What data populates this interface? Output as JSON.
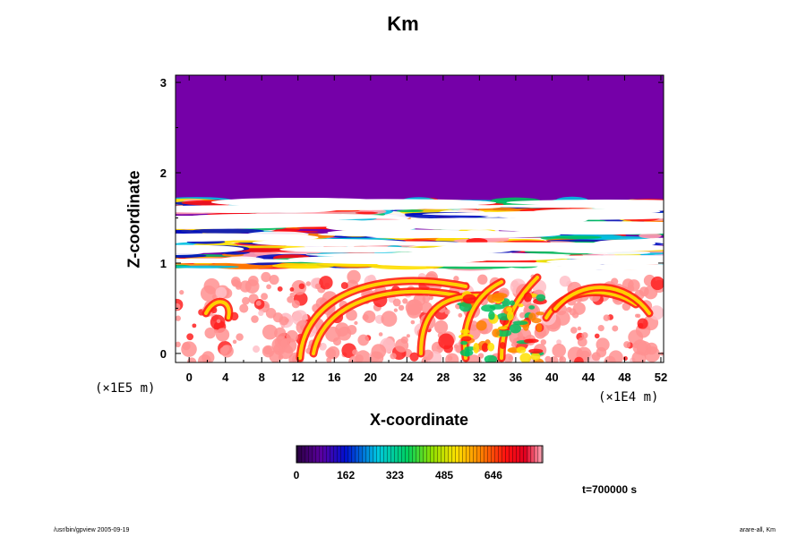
{
  "chart_data": {
    "type": "heatmap",
    "title": "Km",
    "xlabel": "X-coordinate",
    "ylabel": "Z-coordinate",
    "x_unit": "(×1E4 m)",
    "y_unit": "(×1E5 m)",
    "xlim": [
      -1.5,
      52.3
    ],
    "ylim": [
      -0.1,
      3.08
    ],
    "x_ticks": [
      "0",
      "4",
      "8",
      "12",
      "16",
      "20",
      "24",
      "28",
      "32",
      "36",
      "40",
      "44",
      "48",
      "52"
    ],
    "y_ticks": [
      "0",
      "1",
      "2",
      "3"
    ],
    "colorbar": {
      "min": 0,
      "max": 808,
      "tick_labels": [
        "0",
        "162",
        "323",
        "485",
        "646"
      ],
      "colormap": "rainbow (purple-blue-cyan-green-yellow-red-pink)"
    },
    "regions": [
      {
        "description": "stable upper layer, value near 0",
        "z_range": [
          1.7,
          3.08
        ],
        "color": "#7500a8"
      },
      {
        "description": "turbulent layered band",
        "z_range": [
          0.95,
          1.7
        ]
      },
      {
        "description": "convective boundary layer with plumes",
        "z_range": [
          -0.1,
          0.95
        ]
      }
    ]
  },
  "annotations": {
    "time": "t=700000 s",
    "footer_left": "/usr/bin/gpview 2005-09-19",
    "footer_right": "arare-all, Km"
  }
}
